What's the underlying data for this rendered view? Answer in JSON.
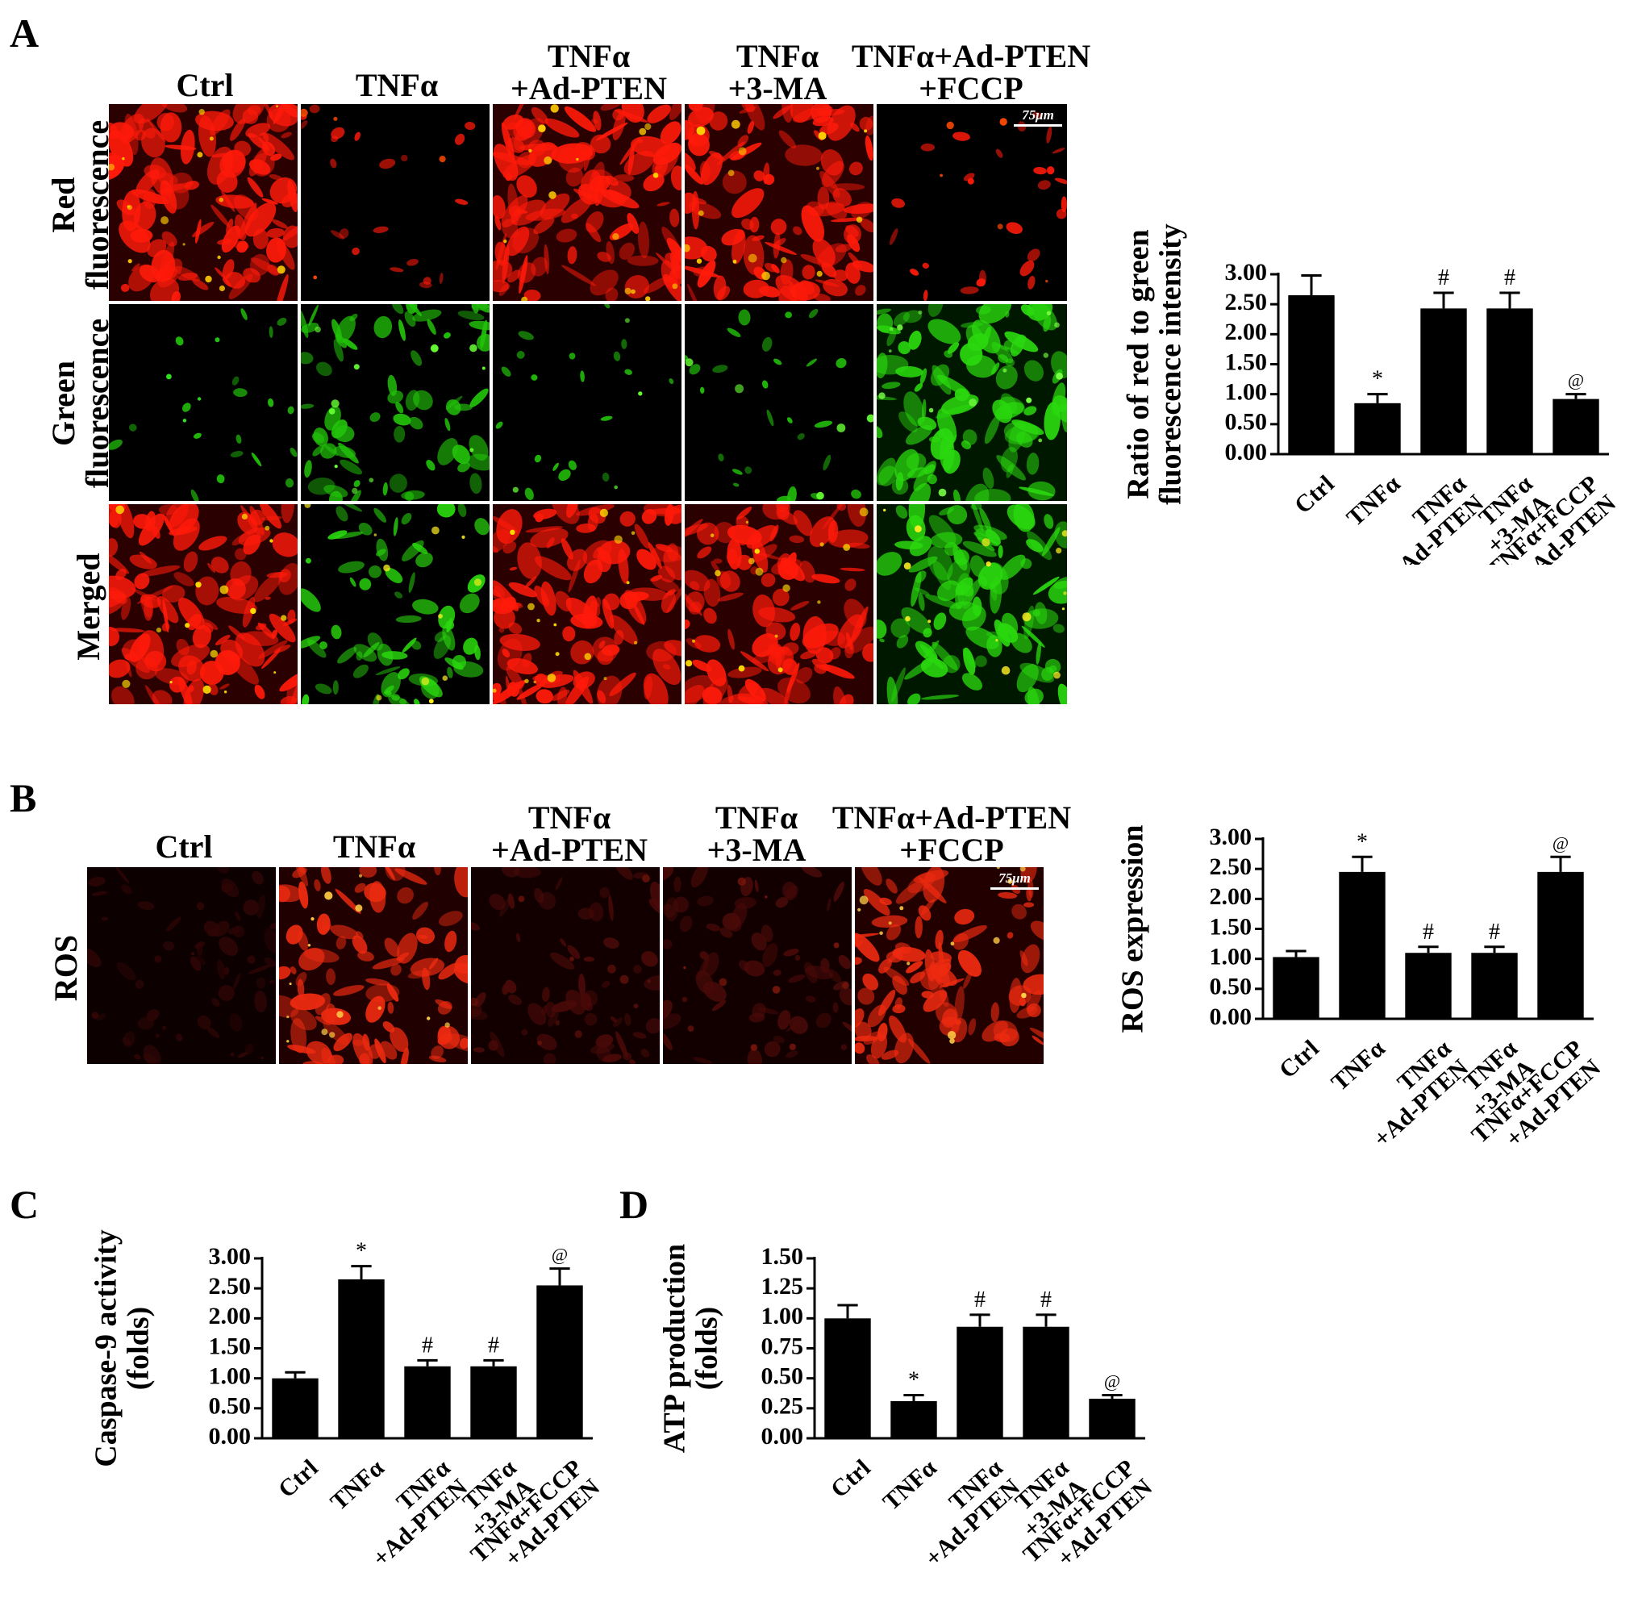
{
  "panels": {
    "a": {
      "letter": "A",
      "columns": [
        {
          "lines": [
            "Ctrl"
          ]
        },
        {
          "lines": [
            "TNFα"
          ]
        },
        {
          "lines": [
            "TNFα",
            "+Ad-PTEN"
          ]
        },
        {
          "lines": [
            "TNFα",
            "+3-MA"
          ]
        },
        {
          "lines": [
            "TNFα+Ad-PTEN",
            "+FCCP"
          ]
        }
      ],
      "rows": [
        {
          "lines": [
            "Red",
            "fluorescence"
          ]
        },
        {
          "lines": [
            "Green",
            "fluorescence"
          ]
        },
        {
          "lines": [
            "Merged"
          ]
        }
      ],
      "scale_bar": "75μm"
    },
    "b": {
      "letter": "B",
      "columns": [
        {
          "lines": [
            "Ctrl"
          ]
        },
        {
          "lines": [
            "TNFα"
          ]
        },
        {
          "lines": [
            "TNFα",
            "+Ad-PTEN"
          ]
        },
        {
          "lines": [
            "TNFα",
            "+3-MA"
          ]
        },
        {
          "lines": [
            "TNFα+Ad-PTEN",
            "+FCCP"
          ]
        }
      ],
      "rows": [
        {
          "lines": [
            "ROS"
          ]
        }
      ],
      "scale_bar": "75μm"
    },
    "c": {
      "letter": "C"
    },
    "d": {
      "letter": "D"
    }
  },
  "micrographs": {
    "a": [
      [
        {
          "bg": "#2a0000",
          "cell": "#ff1a0a",
          "bright": "#ffcc00",
          "density": 0.95
        },
        {
          "bg": "#000000",
          "cell": "#ff1a0a",
          "bright": "#ff4a00",
          "density": 0.1
        },
        {
          "bg": "#2a0000",
          "cell": "#ff1a0a",
          "bright": "#ffcc00",
          "density": 0.95
        },
        {
          "bg": "#2a0000",
          "cell": "#ff1a0a",
          "bright": "#ffcc00",
          "density": 0.9
        },
        {
          "bg": "#000000",
          "cell": "#ff1a0a",
          "bright": "#ff4a00",
          "density": 0.15
        }
      ],
      [
        {
          "bg": "#000000",
          "cell": "#22c20a",
          "bright": "#33ff22",
          "density": 0.08
        },
        {
          "bg": "#000000",
          "cell": "#22c20a",
          "bright": "#66ff33",
          "density": 0.55
        },
        {
          "bg": "#000000",
          "cell": "#22c20a",
          "bright": "#66ff33",
          "density": 0.08
        },
        {
          "bg": "#000000",
          "cell": "#22c20a",
          "bright": "#66ff33",
          "density": 0.15
        },
        {
          "bg": "#001800",
          "cell": "#2ad80e",
          "bright": "#77ff44",
          "density": 0.85
        }
      ],
      [
        {
          "bg": "#2a0000",
          "cell": "#ff1a0a",
          "bright": "#ffdd00",
          "density": 0.95
        },
        {
          "bg": "#000000",
          "cell": "#2ad80e",
          "bright": "#ffee22",
          "density": 0.55
        },
        {
          "bg": "#2a0000",
          "cell": "#ff1a0a",
          "bright": "#ffdd00",
          "density": 0.95
        },
        {
          "bg": "#2a0000",
          "cell": "#ff1a0a",
          "bright": "#ffdd00",
          "density": 0.9
        },
        {
          "bg": "#001800",
          "cell": "#2ad80e",
          "bright": "#ffee22",
          "density": 0.85
        }
      ]
    ],
    "b": [
      [
        {
          "bg": "#0d0000",
          "cell": "#2e0505",
          "bright": "#3a0606",
          "density": 0.4
        },
        {
          "bg": "#200000",
          "cell": "#ee2a10",
          "bright": "#ffcc44",
          "density": 0.75
        },
        {
          "bg": "#120000",
          "cell": "#4a0a08",
          "bright": "#6a120a",
          "density": 0.5
        },
        {
          "bg": "#120000",
          "cell": "#4a0a08",
          "bright": "#7a160c",
          "density": 0.5
        },
        {
          "bg": "#220000",
          "cell": "#ee2a10",
          "bright": "#ffcc44",
          "density": 0.8
        }
      ]
    ]
  },
  "chart_data": [
    {
      "id": "a",
      "type": "bar",
      "categories": [
        "Ctrl",
        "TNFα",
        "TNFα +Ad-PTEN",
        "TNFα +3-MA",
        "TNFα+FCCP +Ad-PTEN"
      ],
      "category_lines": [
        [
          "Ctrl"
        ],
        [
          "TNFα"
        ],
        [
          "TNFα",
          "+Ad-PTEN"
        ],
        [
          "TNFα",
          "+3-MA"
        ],
        [
          "TNFα+FCCP",
          "+Ad-PTEN"
        ]
      ],
      "values": [
        2.65,
        0.85,
        2.43,
        2.43,
        0.92
      ],
      "errors": [
        0.33,
        0.15,
        0.26,
        0.26,
        0.08
      ],
      "significance": [
        "",
        "*",
        "#",
        "#",
        "@"
      ],
      "ylabel_lines": [
        "Ratio of red to green",
        "fluorescence intensity"
      ],
      "ylim": [
        0,
        3.0
      ],
      "yticks": [
        "0.00",
        "0.50",
        "1.00",
        "1.50",
        "2.00",
        "2.50",
        "3.00"
      ],
      "bar_color": "#000000"
    },
    {
      "id": "b",
      "type": "bar",
      "categories": [
        "Ctrl",
        "TNFα",
        "TNFα +Ad-PTEN",
        "TNFα +3-MA",
        "TNFα+FCCP +Ad-PTEN"
      ],
      "category_lines": [
        [
          "Ctrl"
        ],
        [
          "TNFα"
        ],
        [
          "TNFα",
          "+Ad-PTEN"
        ],
        [
          "TNFα",
          "+3-MA"
        ],
        [
          "TNFα+FCCP",
          "+Ad-PTEN"
        ]
      ],
      "values": [
        1.03,
        2.45,
        1.1,
        1.1,
        2.45
      ],
      "errors": [
        0.1,
        0.25,
        0.1,
        0.1,
        0.25
      ],
      "significance": [
        "",
        "*",
        "#",
        "#",
        "@"
      ],
      "ylabel_lines": [
        "ROS expression"
      ],
      "ylim": [
        0,
        3.0
      ],
      "yticks": [
        "0.00",
        "0.50",
        "1.00",
        "1.50",
        "2.00",
        "2.50",
        "3.00"
      ],
      "bar_color": "#000000"
    },
    {
      "id": "c",
      "type": "bar",
      "categories": [
        "Ctrl",
        "TNFα",
        "TNFα +Ad-PTEN",
        "TNFα +3-MA",
        "TNFα+FCCP +Ad-PTEN"
      ],
      "category_lines": [
        [
          "Ctrl"
        ],
        [
          "TNFα"
        ],
        [
          "TNFα",
          "+Ad-PTEN"
        ],
        [
          "TNFα",
          "+3-MA"
        ],
        [
          "TNFα+FCCP",
          "+Ad-PTEN"
        ]
      ],
      "values": [
        1.0,
        2.65,
        1.2,
        1.2,
        2.55
      ],
      "errors": [
        0.1,
        0.22,
        0.1,
        0.1,
        0.28
      ],
      "significance": [
        "",
        "*",
        "#",
        "#",
        "@"
      ],
      "ylabel_lines": [
        "Caspase-9 activity",
        "(folds)"
      ],
      "ylim": [
        0,
        3.0
      ],
      "yticks": [
        "0.00",
        "0.50",
        "1.00",
        "1.50",
        "2.00",
        "2.50",
        "3.00"
      ],
      "bar_color": "#000000"
    },
    {
      "id": "d",
      "type": "bar",
      "categories": [
        "Ctrl",
        "TNFα",
        "TNFα +Ad-PTEN",
        "TNFα +3-MA",
        "TNFα+FCCP +Ad-PTEN"
      ],
      "category_lines": [
        [
          "Ctrl"
        ],
        [
          "TNFα"
        ],
        [
          "TNFα",
          "+Ad-PTEN"
        ],
        [
          "TNFα",
          "+3-MA"
        ],
        [
          "TNFα+FCCP",
          "+Ad-PTEN"
        ]
      ],
      "values": [
        1.0,
        0.31,
        0.93,
        0.93,
        0.33
      ],
      "errors": [
        0.11,
        0.05,
        0.1,
        0.1,
        0.03
      ],
      "significance": [
        "",
        "*",
        "#",
        "#",
        "@"
      ],
      "ylabel_lines": [
        "ATP production",
        "(folds)"
      ],
      "ylim": [
        0,
        1.5
      ],
      "yticks": [
        "0.00",
        "0.25",
        "0.50",
        "0.75",
        "1.00",
        "1.25",
        "1.50"
      ],
      "bar_color": "#000000"
    }
  ]
}
